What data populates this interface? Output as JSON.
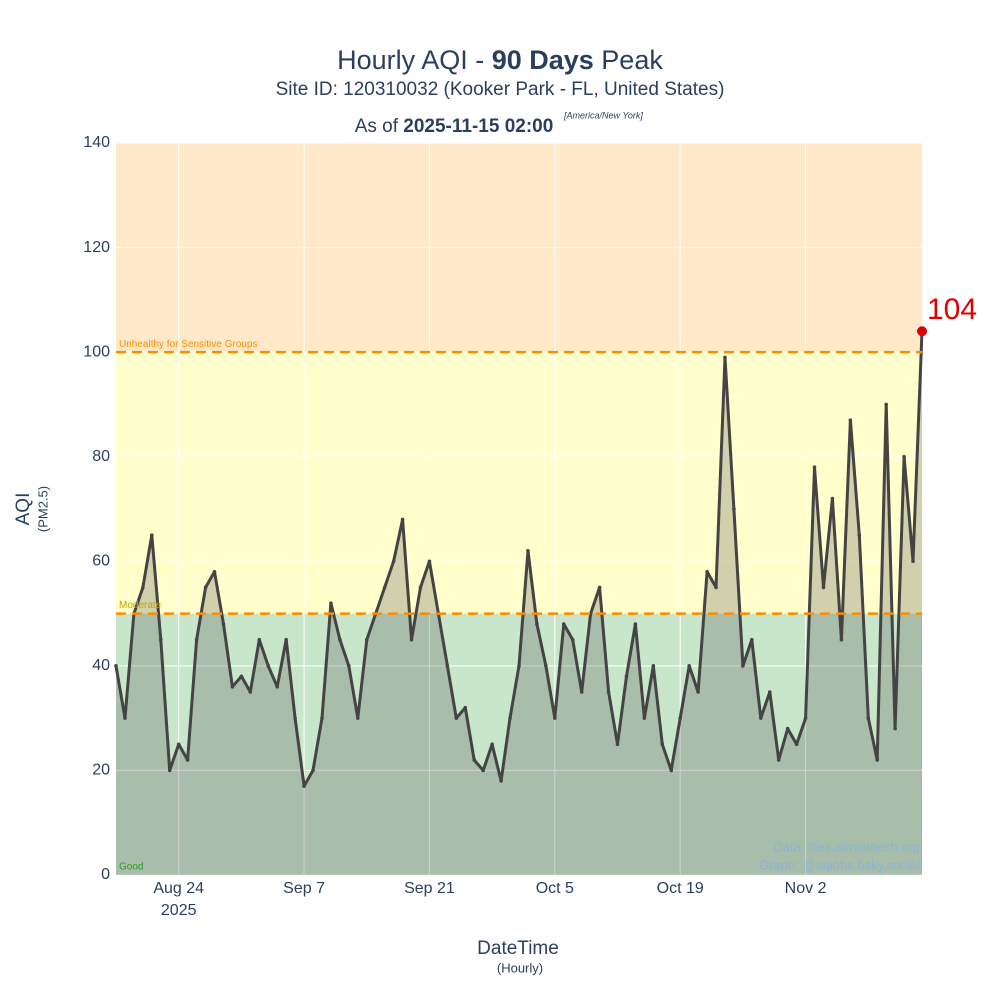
{
  "chart_data": {
    "type": "line",
    "title": {
      "prefix": "Hourly AQI - ",
      "bold": "90 Days",
      "suffix": " Peak"
    },
    "subtitle": "Site ID: 120310032 (Kooker Park - FL, United States)",
    "as_of": {
      "prefix": "As of ",
      "bold": "2025-11-15 02:00",
      "timezone": "[America/New York]"
    },
    "y_label": "AQI",
    "y_sublabel": "(PM2.5)",
    "x_label": "DateTime",
    "x_sublabel": "(Hourly)",
    "credits": [
      "Data: files.airnowtech.org",
      "Graph: @aqiobs.bsky.social"
    ],
    "bands": [
      {
        "name": "Good",
        "from": 0,
        "to": 50,
        "color": "#c8e6c9"
      },
      {
        "name": "Moderate",
        "from": 50,
        "to": 100,
        "color": "#ffffcc"
      },
      {
        "name": "Unhealthy for Sensitive Groups",
        "from": 100,
        "to": 140,
        "color": "#ffe9c9"
      }
    ],
    "thresholds": [
      50,
      100
    ],
    "threshold_color": "#ff8c00",
    "peak_color": "#e00000",
    "grid": true,
    "xlim": [
      "2025-08-17",
      "2025-11-15"
    ],
    "ylim": [
      0,
      140
    ],
    "yticks": [
      0,
      20,
      40,
      60,
      80,
      100,
      120,
      140
    ],
    "xticks": [
      {
        "value": "2025-08-24",
        "label": "Aug 24"
      },
      {
        "value": "2025-09-07",
        "label": "Sep 7"
      },
      {
        "value": "2025-09-21",
        "label": "Sep 21"
      },
      {
        "value": "2025-10-05",
        "label": "Oct 5"
      },
      {
        "value": "2025-10-19",
        "label": "Oct 19"
      },
      {
        "value": "2025-11-02",
        "label": "Nov 2"
      }
    ],
    "xtick_year": "2025",
    "x": [
      "2025-08-17",
      "2025-08-18",
      "2025-08-19",
      "2025-08-20",
      "2025-08-21",
      "2025-08-22",
      "2025-08-23",
      "2025-08-24",
      "2025-08-25",
      "2025-08-26",
      "2025-08-27",
      "2025-08-28",
      "2025-08-29",
      "2025-08-30",
      "2025-08-31",
      "2025-09-01",
      "2025-09-02",
      "2025-09-03",
      "2025-09-04",
      "2025-09-05",
      "2025-09-06",
      "2025-09-07",
      "2025-09-08",
      "2025-09-09",
      "2025-09-10",
      "2025-09-11",
      "2025-09-12",
      "2025-09-13",
      "2025-09-14",
      "2025-09-15",
      "2025-09-16",
      "2025-09-17",
      "2025-09-18",
      "2025-09-19",
      "2025-09-20",
      "2025-09-21",
      "2025-09-22",
      "2025-09-23",
      "2025-09-24",
      "2025-09-25",
      "2025-09-26",
      "2025-09-27",
      "2025-09-28",
      "2025-09-29",
      "2025-09-30",
      "2025-10-01",
      "2025-10-02",
      "2025-10-03",
      "2025-10-04",
      "2025-10-05",
      "2025-10-06",
      "2025-10-07",
      "2025-10-08",
      "2025-10-09",
      "2025-10-10",
      "2025-10-11",
      "2025-10-12",
      "2025-10-13",
      "2025-10-14",
      "2025-10-15",
      "2025-10-16",
      "2025-10-17",
      "2025-10-18",
      "2025-10-19",
      "2025-10-20",
      "2025-10-21",
      "2025-10-22",
      "2025-10-23",
      "2025-10-24",
      "2025-10-25",
      "2025-10-26",
      "2025-10-27",
      "2025-10-28",
      "2025-10-29",
      "2025-10-30",
      "2025-10-31",
      "2025-11-01",
      "2025-11-02",
      "2025-11-03",
      "2025-11-04",
      "2025-11-05",
      "2025-11-06",
      "2025-11-07",
      "2025-11-08",
      "2025-11-09",
      "2025-11-10",
      "2025-11-11",
      "2025-11-12",
      "2025-11-13",
      "2025-11-14",
      "2025-11-15"
    ],
    "series": [
      {
        "name": "AQI",
        "color": "#444444",
        "values": [
          40,
          30,
          50,
          55,
          65,
          45,
          20,
          25,
          22,
          45,
          55,
          58,
          48,
          36,
          38,
          35,
          45,
          40,
          36,
          45,
          30,
          17,
          20,
          30,
          52,
          45,
          40,
          30,
          45,
          50,
          55,
          60,
          68,
          45,
          55,
          60,
          50,
          40,
          30,
          32,
          22,
          20,
          25,
          18,
          30,
          40,
          62,
          48,
          40,
          30,
          48,
          45,
          35,
          50,
          55,
          35,
          25,
          38,
          48,
          30,
          40,
          25,
          20,
          30,
          40,
          35,
          58,
          55,
          99,
          70,
          40,
          45,
          30,
          35,
          22,
          28,
          25,
          30,
          78,
          55,
          72,
          45,
          87,
          65,
          30,
          22,
          90,
          28,
          80,
          60,
          104
        ]
      }
    ]
  }
}
